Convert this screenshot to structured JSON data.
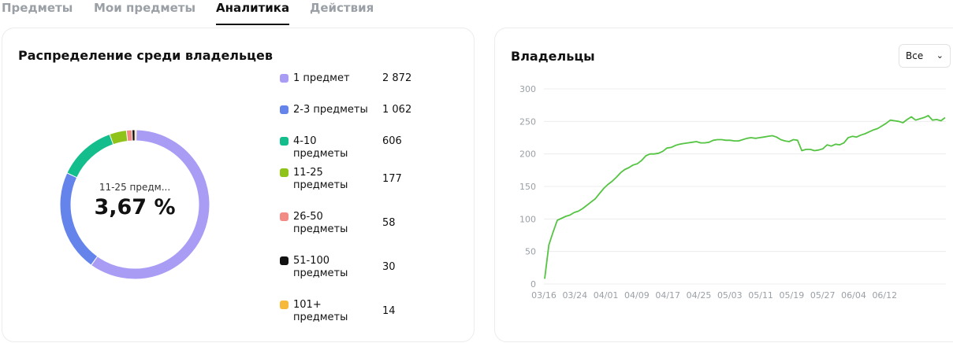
{
  "tabs": [
    {
      "label": "Предметы"
    },
    {
      "label": "Мои предметы"
    },
    {
      "label": "Аналитика"
    },
    {
      "label": "Действия"
    }
  ],
  "distribution": {
    "title": "Распределение среди владельцев",
    "center_label": "11-25 предм...",
    "center_value": "3,67 %",
    "legend": [
      {
        "lines": [
          "1 предмет"
        ],
        "value": "2 872",
        "color": "#a99cf5"
      },
      {
        "lines": [
          "2-3 предметы"
        ],
        "value": "1 062",
        "color": "#6484ec"
      },
      {
        "lines": [
          "4-10 предметы"
        ],
        "value": "606",
        "color": "#14be8c"
      },
      {
        "lines": [
          "11-25",
          "предметы"
        ],
        "value": "177",
        "color": "#8fc31a"
      },
      {
        "lines": [
          "26-50",
          "предметы"
        ],
        "value": "58",
        "color": "#f28a86"
      },
      {
        "lines": [
          "51-100",
          "предметы"
        ],
        "value": "30",
        "color": "#111111"
      },
      {
        "lines": [
          "101+",
          "предметы"
        ],
        "value": "14",
        "color": "#f6b93b"
      }
    ]
  },
  "owners": {
    "title": "Владельцы",
    "select_value": "Все",
    "select_icon": "chevron-down-icon"
  },
  "chart_data": [
    {
      "type": "pie",
      "categories": [
        "1 предмет",
        "2-3 предметы",
        "4-10 предметы",
        "11-25 предметы",
        "26-50 предметы",
        "51-100 предметы",
        "101+ предметы"
      ],
      "values": [
        2872,
        1062,
        606,
        177,
        58,
        30,
        14
      ],
      "title": "Распределение среди владельцев"
    },
    {
      "type": "line",
      "title": "Владельцы",
      "ylim": [
        0,
        300
      ],
      "yticks": [
        0,
        50,
        100,
        150,
        200,
        250,
        300
      ],
      "xticks": [
        "03/16",
        "03/24",
        "04/01",
        "04/09",
        "04/17",
        "04/25",
        "05/03",
        "05/11",
        "05/19",
        "05/27",
        "06/04",
        "06/12"
      ],
      "color": "#55c443",
      "series": [
        {
          "values": [
            8,
            60,
            80,
            98,
            101,
            104,
            106,
            110,
            112,
            116,
            121,
            126,
            131,
            139,
            147,
            153,
            158,
            164,
            171,
            176,
            179,
            183,
            185,
            190,
            197,
            200,
            200,
            201,
            204,
            209,
            210,
            213,
            215,
            216,
            217,
            218,
            219,
            217,
            217,
            218,
            221,
            222,
            222,
            221,
            221,
            220,
            220,
            222,
            224,
            225,
            224,
            225,
            226,
            227,
            228,
            226,
            222,
            220,
            219,
            222,
            221,
            205,
            207,
            207,
            205,
            206,
            208,
            214,
            212,
            215,
            214,
            217,
            225,
            227,
            226,
            229,
            231,
            234,
            237,
            239,
            243,
            247,
            252,
            251,
            250,
            248,
            253,
            257,
            252,
            254,
            256,
            259,
            252,
            253,
            251,
            256
          ]
        }
      ]
    }
  ]
}
